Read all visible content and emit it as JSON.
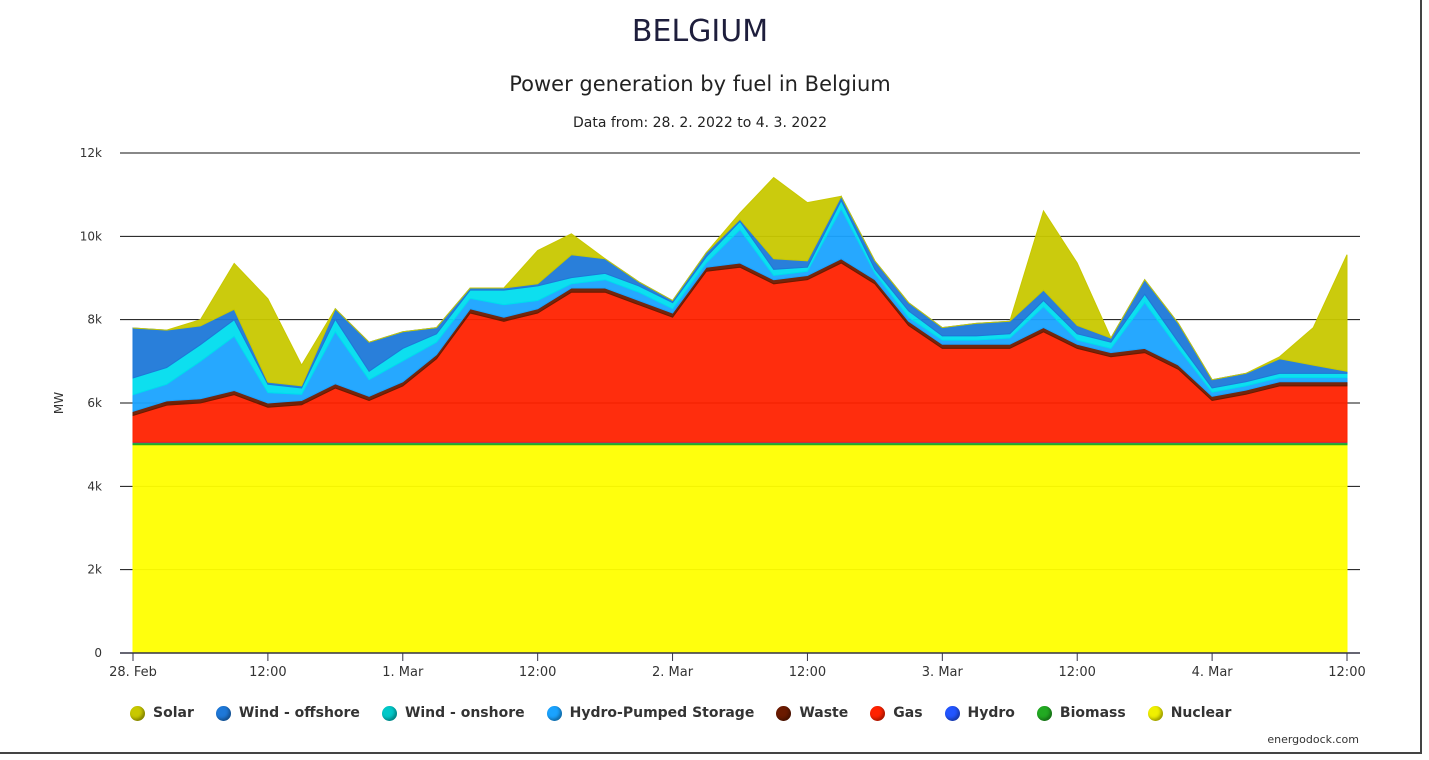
{
  "header": {
    "title": "BELGIUM",
    "subtitle": "Power generation by fuel in Belgium",
    "date_range": "Data from: 28. 2. 2022 to  4. 3. 2022"
  },
  "footer": {
    "credit": "energodock.com"
  },
  "chart_data": {
    "type": "area",
    "stacked": true,
    "ylabel": "MW",
    "ylim": [
      0,
      12000
    ],
    "yticks": [
      0,
      2000,
      4000,
      6000,
      8000,
      10000,
      12000
    ],
    "ytick_labels": [
      "0",
      "2k",
      "4k",
      "6k",
      "8k",
      "10k",
      "12k"
    ],
    "grid": true,
    "legend_position": "bottom",
    "xlim": [
      "2022-02-28 00:00",
      "2022-03-04 12:00"
    ],
    "xticks": [
      {
        "x": "2022-02-28 00:00",
        "label": "28. Feb"
      },
      {
        "x": "2022-02-28 12:00",
        "label": "12:00"
      },
      {
        "x": "2022-03-01 00:00",
        "label": "1. Mar"
      },
      {
        "x": "2022-03-01 12:00",
        "label": "12:00"
      },
      {
        "x": "2022-03-02 00:00",
        "label": "2. Mar"
      },
      {
        "x": "2022-03-02 12:00",
        "label": "12:00"
      },
      {
        "x": "2022-03-03 00:00",
        "label": "3. Mar"
      },
      {
        "x": "2022-03-03 12:00",
        "label": "12:00"
      },
      {
        "x": "2022-03-04 00:00",
        "label": "4. Mar"
      },
      {
        "x": "2022-03-04 12:00",
        "label": "12:00"
      }
    ],
    "x": [
      "2022-02-28 00:00",
      "2022-02-28 03:00",
      "2022-02-28 06:00",
      "2022-02-28 09:00",
      "2022-02-28 12:00",
      "2022-02-28 15:00",
      "2022-02-28 18:00",
      "2022-02-28 21:00",
      "2022-03-01 00:00",
      "2022-03-01 03:00",
      "2022-03-01 06:00",
      "2022-03-01 09:00",
      "2022-03-01 12:00",
      "2022-03-01 15:00",
      "2022-03-01 18:00",
      "2022-03-01 21:00",
      "2022-03-02 00:00",
      "2022-03-02 03:00",
      "2022-03-02 06:00",
      "2022-03-02 09:00",
      "2022-03-02 12:00",
      "2022-03-02 15:00",
      "2022-03-02 18:00",
      "2022-03-02 21:00",
      "2022-03-03 00:00",
      "2022-03-03 03:00",
      "2022-03-03 06:00",
      "2022-03-03 09:00",
      "2022-03-03 12:00",
      "2022-03-03 15:00",
      "2022-03-03 18:00",
      "2022-03-03 21:00",
      "2022-03-04 00:00",
      "2022-03-04 03:00",
      "2022-03-04 06:00",
      "2022-03-04 09:00",
      "2022-03-04 12:00"
    ],
    "series": [
      {
        "name": "Nuclear",
        "color": "#ffff00",
        "values": [
          5000,
          5000,
          5000,
          5000,
          5000,
          5000,
          5000,
          5000,
          5000,
          5000,
          5000,
          5000,
          5000,
          5000,
          5000,
          5000,
          5000,
          5000,
          5000,
          5000,
          5000,
          5000,
          5000,
          5000,
          5000,
          5000,
          5000,
          5000,
          5000,
          5000,
          5000,
          5000,
          5000,
          5000,
          5000,
          5000,
          5000
        ]
      },
      {
        "name": "Biomass",
        "color": "#22aa22",
        "values": [
          50,
          50,
          50,
          50,
          50,
          50,
          50,
          50,
          50,
          50,
          50,
          50,
          50,
          50,
          50,
          50,
          50,
          50,
          50,
          50,
          50,
          50,
          50,
          50,
          50,
          50,
          50,
          50,
          50,
          50,
          50,
          50,
          50,
          50,
          50,
          50,
          50
        ]
      },
      {
        "name": "Hydro",
        "color": "#2255ff",
        "values": [
          10,
          10,
          10,
          10,
          10,
          10,
          10,
          10,
          10,
          10,
          10,
          10,
          10,
          10,
          10,
          10,
          10,
          10,
          10,
          10,
          10,
          10,
          10,
          10,
          10,
          10,
          10,
          10,
          10,
          10,
          10,
          10,
          10,
          10,
          10,
          10,
          10
        ]
      },
      {
        "name": "Gas",
        "color": "#ff2200",
        "values": [
          640,
          890,
          940,
          1140,
          840,
          900,
          1300,
          1000,
          1350,
          2000,
          3100,
          2900,
          3100,
          3600,
          3600,
          3300,
          3000,
          4100,
          4200,
          3800,
          3900,
          4300,
          3800,
          2800,
          2250,
          2250,
          2250,
          2650,
          2250,
          2050,
          2150,
          1750,
          1000,
          1150,
          1350,
          1350,
          1350
        ]
      },
      {
        "name": "Waste",
        "color": "#6b1a00",
        "values": [
          100,
          100,
          100,
          100,
          100,
          100,
          100,
          100,
          100,
          100,
          100,
          100,
          100,
          100,
          100,
          100,
          100,
          100,
          100,
          100,
          100,
          100,
          100,
          100,
          100,
          100,
          100,
          100,
          100,
          100,
          100,
          100,
          100,
          100,
          100,
          100,
          100
        ]
      },
      {
        "name": "Hydro-Pumped Storage",
        "color": "#1aa3ff",
        "values": [
          400,
          400,
          900,
          1300,
          250,
          150,
          1250,
          400,
          500,
          300,
          250,
          300,
          200,
          100,
          200,
          200,
          100,
          100,
          800,
          100,
          100,
          1200,
          150,
          100,
          100,
          100,
          150,
          500,
          100,
          100,
          1100,
          400,
          100,
          100,
          100,
          100,
          100
        ]
      },
      {
        "name": "Wind - onshore",
        "color": "#00ddee",
        "values": [
          400,
          400,
          400,
          400,
          200,
          150,
          300,
          200,
          300,
          200,
          200,
          350,
          350,
          150,
          150,
          150,
          150,
          150,
          200,
          150,
          100,
          200,
          100,
          150,
          100,
          100,
          100,
          150,
          150,
          150,
          200,
          150,
          100,
          100,
          100,
          100,
          100
        ]
      },
      {
        "name": "Wind - offshore",
        "color": "#1e78d8",
        "values": [
          1200,
          900,
          450,
          250,
          50,
          50,
          250,
          700,
          400,
          150,
          50,
          50,
          50,
          550,
          350,
          100,
          50,
          100,
          50,
          250,
          150,
          100,
          200,
          200,
          200,
          300,
          300,
          250,
          200,
          100,
          350,
          450,
          200,
          200,
          350,
          200,
          50
        ]
      },
      {
        "name": "Solar",
        "color": "#c8c800",
        "values": [
          0,
          0,
          150,
          1100,
          2000,
          500,
          0,
          0,
          0,
          0,
          0,
          0,
          800,
          500,
          0,
          0,
          0,
          0,
          150,
          1950,
          1400,
          0,
          0,
          0,
          0,
          0,
          0,
          1900,
          1500,
          0,
          0,
          0,
          0,
          0,
          50,
          900,
          2800
        ]
      }
    ]
  },
  "legend": [
    {
      "label": "Solar",
      "color": "#c8c800"
    },
    {
      "label": "Wind - offshore",
      "color": "#1e78d8"
    },
    {
      "label": "Wind - onshore",
      "color": "#00c8c8"
    },
    {
      "label": "Hydro-Pumped Storage",
      "color": "#1aa3ff"
    },
    {
      "label": "Waste",
      "color": "#6b1a00"
    },
    {
      "label": "Gas",
      "color": "#ff2200"
    },
    {
      "label": "Hydro",
      "color": "#2255ff"
    },
    {
      "label": "Biomass",
      "color": "#22aa22"
    },
    {
      "label": "Nuclear",
      "color": "#f0f000"
    }
  ]
}
